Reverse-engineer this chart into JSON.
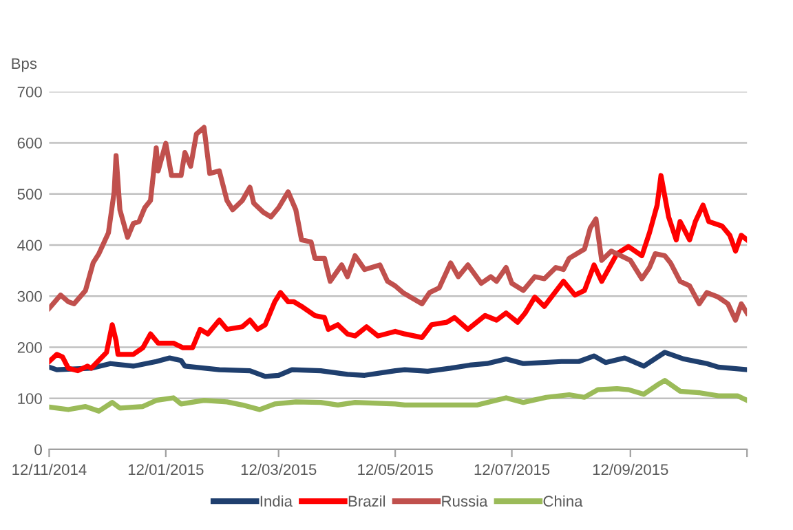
{
  "chart_data": {
    "type": "line",
    "ylabel": "Bps",
    "xlim": [
      "2014-11-12",
      "2015-11-12"
    ],
    "ylim": [
      0,
      700
    ],
    "yticks": [
      0,
      100,
      200,
      300,
      400,
      500,
      600,
      700
    ],
    "xticks": [
      {
        "value": "2014-11-12",
        "label": "12/11/2014"
      },
      {
        "value": "2015-01-12",
        "label": "12/01/2015"
      },
      {
        "value": "2015-03-12",
        "label": "12/03/2015"
      },
      {
        "value": "2015-05-12",
        "label": "12/05/2015"
      },
      {
        "value": "2015-07-12",
        "label": "12/07/2015"
      },
      {
        "value": "2015-09-12",
        "label": "12/09/2015"
      },
      {
        "value": "2015-11-12",
        "label": null
      }
    ],
    "grid": "y",
    "legend": "bottom",
    "marker": "none",
    "line_style": "solid",
    "series": [
      {
        "name": "India",
        "color": "#1f3f6e",
        "x": [
          "2014-11-12",
          "2014-11-16",
          "2014-12-04",
          "2014-12-14",
          "2014-12-26",
          "2015-01-07",
          "2015-01-14",
          "2015-01-20",
          "2015-01-22",
          "2015-02-09",
          "2015-02-25",
          "2015-03-05",
          "2015-03-12",
          "2015-03-19",
          "2015-04-03",
          "2015-04-17",
          "2015-04-26",
          "2015-05-12",
          "2015-05-17",
          "2015-05-29",
          "2015-06-10",
          "2015-06-20",
          "2015-06-29",
          "2015-07-09",
          "2015-07-18",
          "2015-08-07",
          "2015-08-16",
          "2015-08-24",
          "2015-08-30",
          "2015-09-09",
          "2015-09-19",
          "2015-09-30",
          "2015-10-10",
          "2015-10-22",
          "2015-10-28",
          "2015-11-12"
        ],
        "values": [
          161,
          156,
          159,
          168,
          163,
          172,
          179,
          174,
          163,
          156,
          154,
          143,
          145,
          156,
          154,
          147,
          145,
          154,
          156,
          153,
          159,
          165,
          168,
          177,
          168,
          172,
          172,
          183,
          170,
          179,
          163,
          190,
          177,
          168,
          161,
          156
        ]
      },
      {
        "name": "Brazil",
        "color": "#ff0000",
        "x": [
          "2014-11-12",
          "2014-11-16",
          "2014-11-19",
          "2014-11-22",
          "2014-11-27",
          "2014-12-02",
          "2014-12-04",
          "2014-12-12",
          "2014-12-15",
          "2014-12-17",
          "2014-12-18",
          "2014-12-26",
          "2014-12-31",
          "2015-01-04",
          "2015-01-08",
          "2015-01-16",
          "2015-01-21",
          "2015-01-26",
          "2015-01-30",
          "2015-02-03",
          "2015-02-09",
          "2015-02-13",
          "2015-02-21",
          "2015-02-25",
          "2015-03-01",
          "2015-03-05",
          "2015-03-10",
          "2015-03-13",
          "2015-03-17",
          "2015-03-20",
          "2015-03-24",
          "2015-03-31",
          "2015-04-05",
          "2015-04-07",
          "2015-04-12",
          "2015-04-17",
          "2015-04-21",
          "2015-04-27",
          "2015-05-03",
          "2015-05-12",
          "2015-05-17",
          "2015-05-26",
          "2015-05-31",
          "2015-06-08",
          "2015-06-12",
          "2015-06-19",
          "2015-06-28",
          "2015-07-04",
          "2015-07-09",
          "2015-07-15",
          "2015-07-19",
          "2015-07-24",
          "2015-07-29",
          "2015-08-08",
          "2015-08-14",
          "2015-08-19",
          "2015-08-24",
          "2015-08-28",
          "2015-09-05",
          "2015-09-11",
          "2015-09-18",
          "2015-09-22",
          "2015-09-26",
          "2015-09-28",
          "2015-10-02",
          "2015-10-06",
          "2015-10-08",
          "2015-10-13",
          "2015-10-16",
          "2015-10-20",
          "2015-10-23",
          "2015-10-30",
          "2015-11-03",
          "2015-11-06",
          "2015-11-09",
          "2015-11-12"
        ],
        "values": [
          172,
          186,
          181,
          159,
          154,
          163,
          159,
          190,
          244,
          213,
          186,
          186,
          199,
          226,
          208,
          208,
          199,
          199,
          235,
          226,
          253,
          235,
          240,
          253,
          235,
          244,
          289,
          307,
          289,
          289,
          280,
          262,
          258,
          235,
          244,
          226,
          222,
          240,
          222,
          231,
          226,
          219,
          244,
          249,
          258,
          235,
          262,
          253,
          267,
          249,
          267,
          298,
          280,
          329,
          302,
          311,
          361,
          329,
          383,
          397,
          379,
          424,
          478,
          536,
          455,
          410,
          446,
          410,
          446,
          478,
          446,
          437,
          419,
          388,
          419,
          410
        ]
      },
      {
        "name": "Russia",
        "color": "#c0504d",
        "x": [
          "2014-11-12",
          "2014-11-18",
          "2014-11-22",
          "2014-11-25",
          "2014-12-01",
          "2014-12-05",
          "2014-12-08",
          "2014-12-13",
          "2014-12-16",
          "2014-12-17",
          "2014-12-19",
          "2014-12-23",
          "2014-12-26",
          "2014-12-29",
          "2015-01-01",
          "2015-01-04",
          "2015-01-07",
          "2015-01-08",
          "2015-01-12",
          "2015-01-15",
          "2015-01-20",
          "2015-01-22",
          "2015-01-25",
          "2015-01-28",
          "2015-02-01",
          "2015-02-04",
          "2015-02-09",
          "2015-02-13",
          "2015-02-16",
          "2015-02-21",
          "2015-02-25",
          "2015-02-27",
          "2015-03-04",
          "2015-03-08",
          "2015-03-12",
          "2015-03-17",
          "2015-03-21",
          "2015-03-24",
          "2015-03-29",
          "2015-03-31",
          "2015-04-05",
          "2015-04-08",
          "2015-04-14",
          "2015-04-17",
          "2015-04-21",
          "2015-04-26",
          "2015-05-04",
          "2015-05-08",
          "2015-05-12",
          "2015-05-16",
          "2015-05-26",
          "2015-05-30",
          "2015-06-04",
          "2015-06-10",
          "2015-06-14",
          "2015-06-19",
          "2015-06-26",
          "2015-07-01",
          "2015-07-04",
          "2015-07-09",
          "2015-07-12",
          "2015-07-18",
          "2015-07-24",
          "2015-07-29",
          "2015-08-04",
          "2015-08-08",
          "2015-08-11",
          "2015-08-19",
          "2015-08-22",
          "2015-08-25",
          "2015-08-28",
          "2015-09-02",
          "2015-09-07",
          "2015-09-12",
          "2015-09-18",
          "2015-09-22",
          "2015-09-25",
          "2015-09-30",
          "2015-10-03",
          "2015-10-08",
          "2015-10-13",
          "2015-10-18",
          "2015-10-22",
          "2015-10-28",
          "2015-11-02",
          "2015-11-06",
          "2015-11-09",
          "2015-11-12"
        ],
        "values": [
          276,
          302,
          289,
          285,
          311,
          365,
          383,
          424,
          504,
          575,
          469,
          415,
          442,
          446,
          473,
          487,
          590,
          545,
          599,
          536,
          536,
          581,
          554,
          617,
          630,
          540,
          545,
          487,
          469,
          487,
          513,
          482,
          464,
          455,
          473,
          504,
          469,
          410,
          406,
          374,
          374,
          329,
          361,
          338,
          379,
          352,
          361,
          329,
          320,
          307,
          285,
          307,
          316,
          365,
          338,
          361,
          325,
          338,
          329,
          356,
          325,
          311,
          338,
          334,
          356,
          352,
          374,
          392,
          433,
          451,
          370,
          388,
          379,
          370,
          334,
          356,
          383,
          379,
          365,
          329,
          320,
          285,
          307,
          298,
          285,
          253,
          285,
          267
        ]
      },
      {
        "name": "China",
        "color": "#9bbb59",
        "x": [
          "2014-11-12",
          "2014-11-22",
          "2014-12-01",
          "2014-12-08",
          "2014-12-15",
          "2014-12-19",
          "2014-12-31",
          "2015-01-07",
          "2015-01-16",
          "2015-01-20",
          "2015-02-01",
          "2015-02-13",
          "2015-02-21",
          "2015-03-02",
          "2015-03-10",
          "2015-03-21",
          "2015-04-03",
          "2015-04-12",
          "2015-04-21",
          "2015-05-12",
          "2015-05-17",
          "2015-06-05",
          "2015-06-24",
          "2015-07-09",
          "2015-07-18",
          "2015-07-30",
          "2015-08-11",
          "2015-08-19",
          "2015-08-26",
          "2015-09-05",
          "2015-09-11",
          "2015-09-19",
          "2015-09-26",
          "2015-09-30",
          "2015-10-08",
          "2015-10-18",
          "2015-10-28",
          "2015-11-07",
          "2015-11-12"
        ],
        "values": [
          83,
          78,
          84,
          75,
          92,
          81,
          84,
          96,
          101,
          89,
          96,
          93,
          87,
          78,
          89,
          93,
          92,
          87,
          92,
          89,
          87,
          87,
          87,
          101,
          92,
          102,
          107,
          102,
          117,
          119,
          117,
          108,
          126,
          135,
          114,
          111,
          105,
          105,
          96
        ]
      }
    ]
  }
}
